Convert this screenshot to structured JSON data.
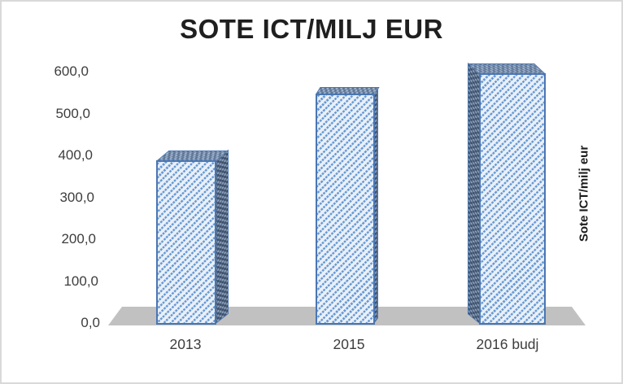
{
  "window": {
    "background": "#ffffff",
    "frame_border_color": "#d9d9d9"
  },
  "chart_data": {
    "type": "bar",
    "style": "3d-perspective-columns",
    "title": "SOTE ICT/MILJ EUR",
    "categories": [
      "2013",
      "2015",
      "2016 budj"
    ],
    "values": [
      390,
      548,
      596
    ],
    "series_axis_label": "Sote ICT/milj eur",
    "xlabel": "",
    "ylabel": "",
    "yticks": [
      "600,0",
      "500,0",
      "400,0",
      "300,0",
      "200,0",
      "100,0",
      "0,0"
    ],
    "ylim": [
      0,
      600
    ],
    "gridlines": false,
    "legend_position": "none",
    "colors": {
      "bar_border": "#4a76b3",
      "bar_pattern_stripe": "#6899d2",
      "bar_pattern_background": "#e9f0f9",
      "bar_top_face": "#a3b8d1",
      "bar_side_face": "#8ea3be",
      "floor": "#c1c1c1",
      "axis_text": "#3d3d3d",
      "title_text": "#1f1f1f"
    }
  }
}
